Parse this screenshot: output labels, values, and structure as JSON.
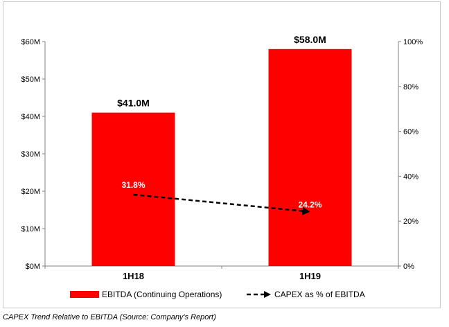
{
  "chart_data": {
    "type": "bar",
    "categories": [
      "1H18",
      "1H19"
    ],
    "series": [
      {
        "name": "EBITDA (Continuing Operations)",
        "type": "bar",
        "axis": "left",
        "values": [
          41.0,
          58.0
        ],
        "value_labels": [
          "$41.0M",
          "$58.0M"
        ],
        "color": "#ff0000"
      },
      {
        "name": "CAPEX as % of EBITDA",
        "type": "line",
        "axis": "right",
        "style": "dashed-arrow",
        "values": [
          31.8,
          24.2
        ],
        "value_labels": [
          "31.8%",
          "24.2%"
        ],
        "color": "#000000"
      }
    ],
    "left_axis": {
      "ylim": [
        0,
        60
      ],
      "ticks": [
        0,
        10,
        20,
        30,
        40,
        50,
        60
      ],
      "tick_labels": [
        "$0M",
        "$10M",
        "$20M",
        "$30M",
        "$40M",
        "$50M",
        "$60M"
      ]
    },
    "right_axis": {
      "ylim": [
        0,
        100
      ],
      "ticks": [
        0,
        20,
        40,
        60,
        80,
        100
      ],
      "tick_labels": [
        "0%",
        "20%",
        "40%",
        "60%",
        "80%",
        "100%"
      ]
    },
    "grid": false,
    "legend": {
      "position": "bottom"
    },
    "title": "",
    "xlabel": "",
    "ylabel": ""
  },
  "caption": "CAPEX Trend Relative to EBITDA (Source: Company's Report)"
}
